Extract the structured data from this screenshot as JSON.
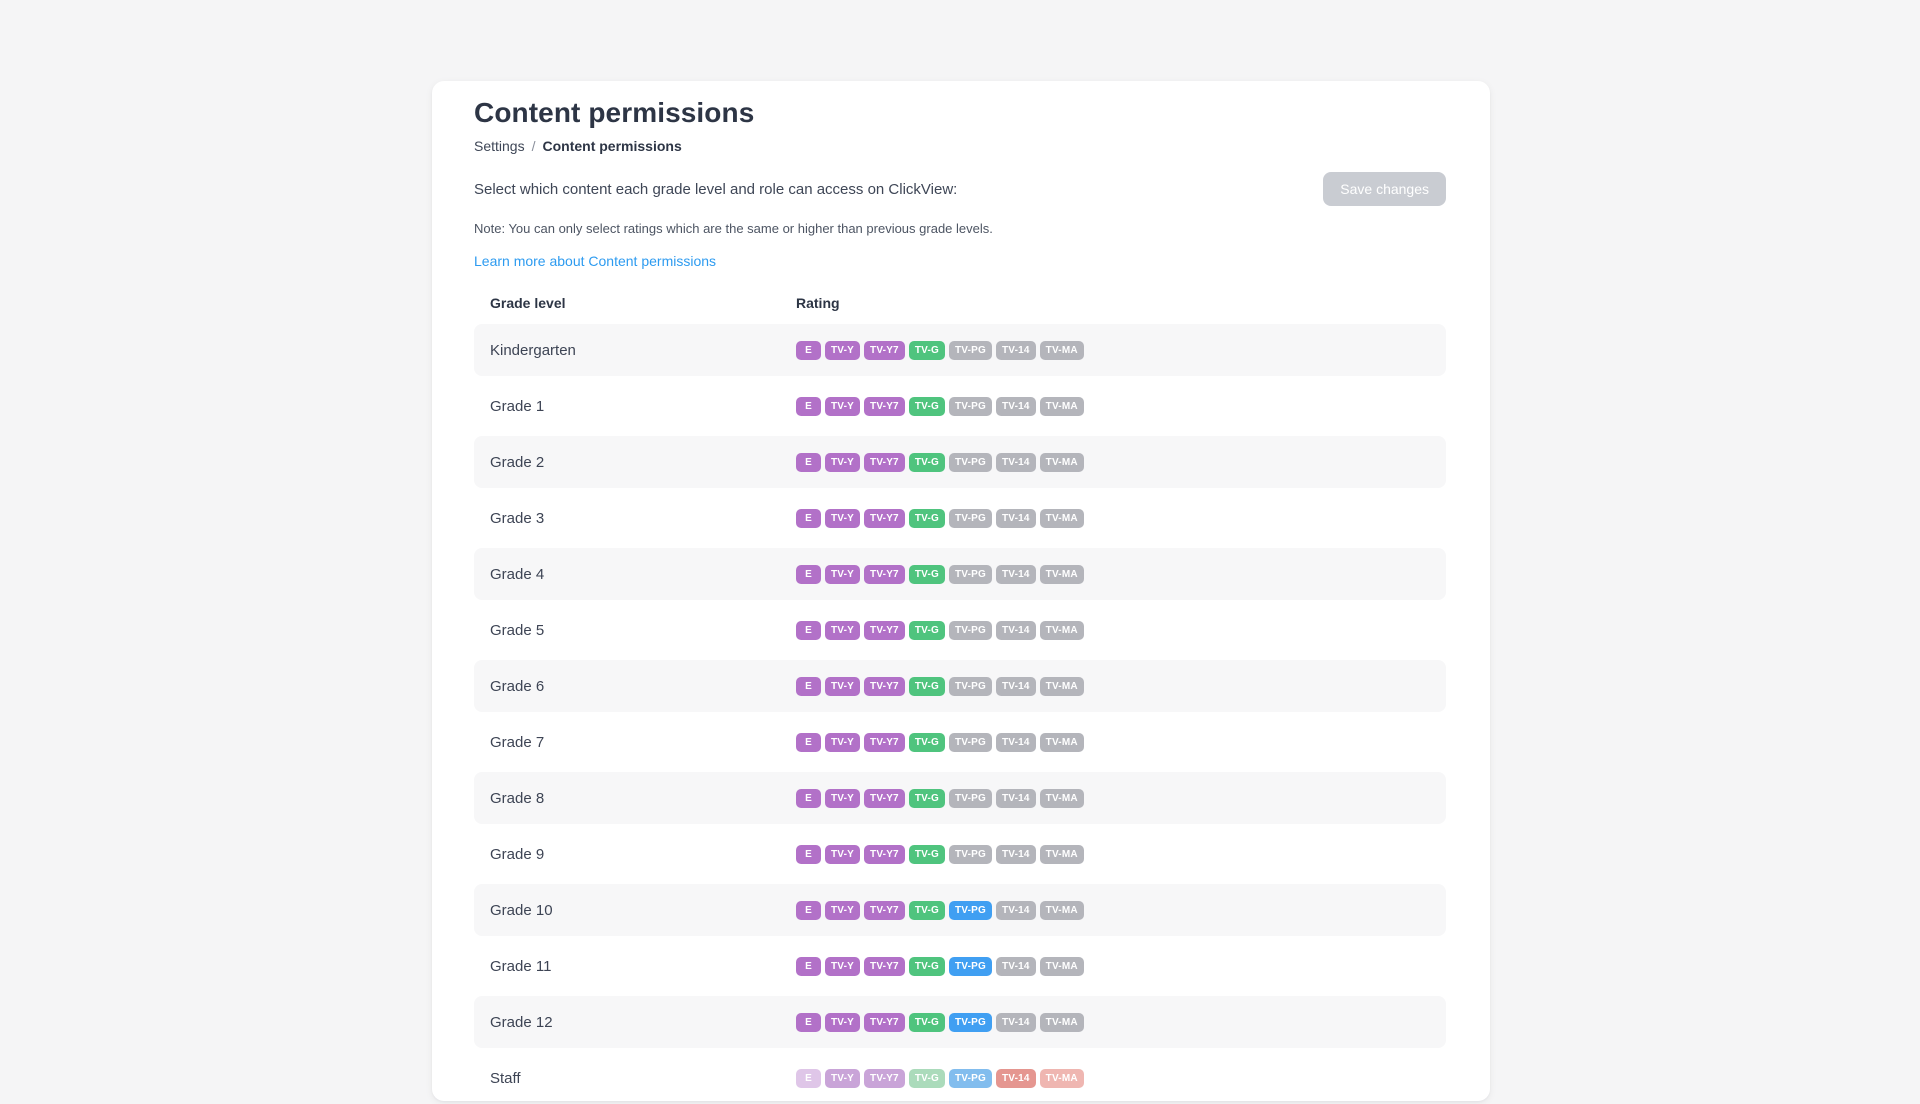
{
  "header": {
    "title": "Content permissions",
    "breadcrumb": {
      "parent": "Settings",
      "separator": "/",
      "current": "Content permissions"
    },
    "description": "Select which content each grade level and role can access on ClickView:",
    "note": "Note: You can only select ratings which are the same or higher than previous grade levels.",
    "link_label": "Learn more about Content permissions",
    "save_button_label": "Save changes",
    "save_button_state": "disabled"
  },
  "table": {
    "columns": {
      "grade": "Grade level",
      "rating": "Rating"
    },
    "ratings": [
      "E",
      "TV-Y",
      "TV-Y7",
      "TV-G",
      "TV-PG",
      "TV-14",
      "TV-MA"
    ],
    "palette": {
      "purple": "#b271c8",
      "green": "#4fc47e",
      "blue": "#409ff2",
      "gray": "#b4b5bb",
      "staff_pale_purple": "#dfc6e8",
      "staff_purple": "#c9a4d8",
      "staff_green": "#abdbbb",
      "staff_blue": "#82bdee",
      "staff_red": "#e59690",
      "staff_pale_red": "#efb6b1"
    },
    "rows": [
      {
        "label": "Kindergarten",
        "badge_colors": [
          "purple",
          "purple",
          "purple",
          "green",
          "gray",
          "gray",
          "gray"
        ]
      },
      {
        "label": "Grade 1",
        "badge_colors": [
          "purple",
          "purple",
          "purple",
          "green",
          "gray",
          "gray",
          "gray"
        ]
      },
      {
        "label": "Grade 2",
        "badge_colors": [
          "purple",
          "purple",
          "purple",
          "green",
          "gray",
          "gray",
          "gray"
        ]
      },
      {
        "label": "Grade 3",
        "badge_colors": [
          "purple",
          "purple",
          "purple",
          "green",
          "gray",
          "gray",
          "gray"
        ]
      },
      {
        "label": "Grade 4",
        "badge_colors": [
          "purple",
          "purple",
          "purple",
          "green",
          "gray",
          "gray",
          "gray"
        ]
      },
      {
        "label": "Grade 5",
        "badge_colors": [
          "purple",
          "purple",
          "purple",
          "green",
          "gray",
          "gray",
          "gray"
        ]
      },
      {
        "label": "Grade 6",
        "badge_colors": [
          "purple",
          "purple",
          "purple",
          "green",
          "gray",
          "gray",
          "gray"
        ]
      },
      {
        "label": "Grade 7",
        "badge_colors": [
          "purple",
          "purple",
          "purple",
          "green",
          "gray",
          "gray",
          "gray"
        ]
      },
      {
        "label": "Grade 8",
        "badge_colors": [
          "purple",
          "purple",
          "purple",
          "green",
          "gray",
          "gray",
          "gray"
        ]
      },
      {
        "label": "Grade 9",
        "badge_colors": [
          "purple",
          "purple",
          "purple",
          "green",
          "gray",
          "gray",
          "gray"
        ]
      },
      {
        "label": "Grade 10",
        "badge_colors": [
          "purple",
          "purple",
          "purple",
          "green",
          "blue",
          "gray",
          "gray"
        ]
      },
      {
        "label": "Grade 11",
        "badge_colors": [
          "purple",
          "purple",
          "purple",
          "green",
          "blue",
          "gray",
          "gray"
        ]
      },
      {
        "label": "Grade 12",
        "badge_colors": [
          "purple",
          "purple",
          "purple",
          "green",
          "blue",
          "gray",
          "gray"
        ]
      },
      {
        "label": "Staff",
        "badge_colors": [
          "staff_pale_purple",
          "staff_purple",
          "staff_purple",
          "staff_green",
          "staff_blue",
          "staff_red",
          "staff_pale_red"
        ]
      }
    ]
  }
}
